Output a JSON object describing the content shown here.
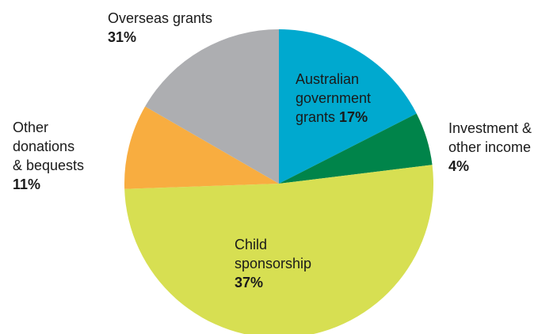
{
  "chart_data": {
    "type": "pie",
    "title": "",
    "slices": [
      {
        "id": "aus_gov",
        "name_lines": [
          "Australian",
          "government",
          "grants"
        ],
        "percent_text": "17%",
        "value": 17,
        "color": "#00a9cf"
      },
      {
        "id": "invest",
        "name_lines": [
          "Investment &",
          "other income"
        ],
        "percent_text": "4%",
        "value": 4,
        "color": "#00844a"
      },
      {
        "id": "child",
        "name_lines": [
          "Child",
          "sponsorship"
        ],
        "percent_text": "37%",
        "value": 37,
        "color": "#d7df52"
      },
      {
        "id": "other",
        "name_lines": [
          "Other",
          "donations",
          "& bequests"
        ],
        "percent_text": "11%",
        "value": 11,
        "color": "#f8ad40"
      },
      {
        "id": "overseas",
        "name_lines": [
          "Overseas grants"
        ],
        "percent_text": "31%",
        "value": 31,
        "color": "#adaeb1"
      }
    ]
  }
}
